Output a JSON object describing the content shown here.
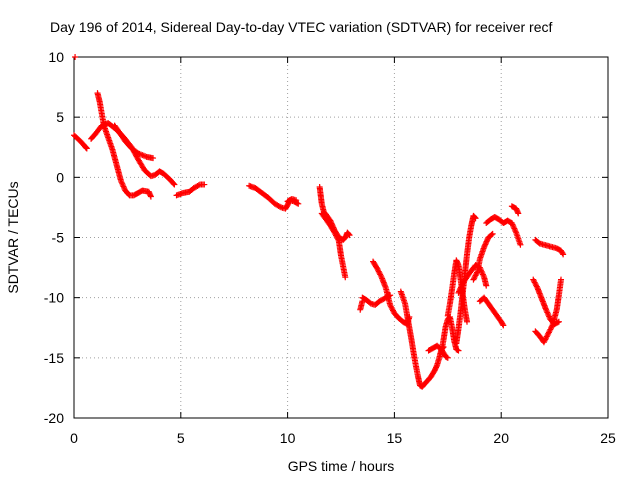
{
  "chart_data": {
    "type": "scatter",
    "title": "Day 196 of 2014, Sidereal Day-to-day VTEC variation (SDTVAR) for receiver recf",
    "xlabel": "GPS time / hours",
    "ylabel": "SDTVAR / TECUs",
    "xlim": [
      0,
      25
    ],
    "ylim": [
      -20,
      10
    ],
    "xticks": [
      0,
      5,
      10,
      15,
      20,
      25
    ],
    "yticks": [
      -20,
      -15,
      -10,
      -5,
      0,
      5,
      10
    ],
    "xtick_labels": [
      "0",
      "5",
      "10",
      "15",
      "20",
      "25"
    ],
    "ytick_labels": [
      "-20",
      "-15",
      "-10",
      "-5",
      "0",
      "5",
      "10"
    ],
    "grid": true,
    "marker": "plus",
    "series": [
      {
        "name": "SDTVAR",
        "color": "#ff0000",
        "tracks": [
          [
            [
              0.05,
              10.0
            ]
          ],
          [
            [
              0.0,
              3.5
            ],
            [
              0.3,
              3.0
            ],
            [
              0.6,
              2.4
            ],
            [
              0.55,
              2.5
            ]
          ],
          [
            [
              0.8,
              3.2
            ],
            [
              1.0,
              3.6
            ],
            [
              1.3,
              4.3
            ],
            [
              1.6,
              4.5
            ],
            [
              1.9,
              4.1
            ],
            [
              2.3,
              3.4
            ],
            [
              2.7,
              2.5
            ],
            [
              3.0,
              1.5
            ],
            [
              3.3,
              0.6
            ],
            [
              3.6,
              0.1
            ],
            [
              3.8,
              0.2
            ],
            [
              4.0,
              0.5
            ],
            [
              4.2,
              0.3
            ],
            [
              4.5,
              -0.2
            ],
            [
              4.7,
              -0.6
            ]
          ],
          [
            [
              1.1,
              7.0
            ],
            [
              1.2,
              6.3
            ],
            [
              1.3,
              5.3
            ],
            [
              1.4,
              4.3
            ],
            [
              1.6,
              3.3
            ],
            [
              1.8,
              2.3
            ],
            [
              2.0,
              1.0
            ],
            [
              2.2,
              -0.3
            ],
            [
              2.4,
              -1.1
            ],
            [
              2.6,
              -1.5
            ],
            [
              2.8,
              -1.5
            ],
            [
              3.0,
              -1.3
            ],
            [
              3.2,
              -1.1
            ],
            [
              3.5,
              -1.2
            ],
            [
              3.6,
              -1.6
            ]
          ],
          [
            [
              1.9,
              4.3
            ],
            [
              2.1,
              3.8
            ],
            [
              2.4,
              3.0
            ],
            [
              2.7,
              2.4
            ],
            [
              3.0,
              2.0
            ],
            [
              3.4,
              1.7
            ],
            [
              3.7,
              1.6
            ]
          ],
          [
            [
              4.8,
              -1.5
            ],
            [
              5.1,
              -1.3
            ],
            [
              5.4,
              -1.2
            ],
            [
              5.6,
              -0.9
            ],
            [
              5.9,
              -0.6
            ],
            [
              6.1,
              -0.6
            ]
          ],
          [
            [
              8.2,
              -0.7
            ],
            [
              8.5,
              -0.9
            ],
            [
              8.8,
              -1.3
            ],
            [
              9.1,
              -1.7
            ],
            [
              9.4,
              -2.2
            ],
            [
              9.7,
              -2.5
            ],
            [
              9.9,
              -2.6
            ],
            [
              10.0,
              -2.3
            ],
            [
              10.1,
              -1.9
            ],
            [
              10.3,
              -2.0
            ],
            [
              10.5,
              -2.2
            ]
          ],
          [
            [
              10.0,
              -2.0
            ],
            [
              10.2,
              -1.8
            ],
            [
              10.4,
              -1.9
            ]
          ],
          [
            [
              11.5,
              -0.8
            ],
            [
              11.55,
              -1.5
            ],
            [
              11.6,
              -2.2
            ],
            [
              11.7,
              -2.9
            ],
            [
              11.8,
              -3.1
            ],
            [
              12.0,
              -3.6
            ],
            [
              12.2,
              -4.4
            ],
            [
              12.4,
              -5.0
            ],
            [
              12.6,
              -5.2
            ],
            [
              12.7,
              -5.0
            ],
            [
              12.8,
              -4.6
            ],
            [
              12.9,
              -4.8
            ]
          ],
          [
            [
              11.6,
              -3.0
            ],
            [
              11.8,
              -3.5
            ],
            [
              12.0,
              -4.0
            ],
            [
              12.2,
              -4.6
            ],
            [
              12.4,
              -5.3
            ],
            [
              12.5,
              -6.5
            ],
            [
              12.6,
              -7.4
            ],
            [
              12.7,
              -8.3
            ]
          ],
          [
            [
              13.5,
              -10.0
            ],
            [
              13.7,
              -10.2
            ],
            [
              13.9,
              -10.5
            ],
            [
              14.1,
              -10.6
            ],
            [
              14.3,
              -10.3
            ],
            [
              14.6,
              -10.0
            ],
            [
              14.8,
              -9.8
            ]
          ],
          [
            [
              13.4,
              -11.0
            ],
            [
              13.5,
              -10.3
            ]
          ],
          [
            [
              14.0,
              -7.0
            ],
            [
              14.2,
              -7.6
            ],
            [
              14.4,
              -8.3
            ],
            [
              14.6,
              -9.2
            ],
            [
              14.8,
              -10.6
            ],
            [
              15.0,
              -11.3
            ],
            [
              15.2,
              -11.7
            ],
            [
              15.4,
              -12.0
            ],
            [
              15.6,
              -12.2
            ],
            [
              15.7,
              -11.6
            ]
          ],
          [
            [
              15.3,
              -9.5
            ],
            [
              15.5,
              -10.5
            ],
            [
              15.6,
              -11.5
            ],
            [
              15.7,
              -12.5
            ],
            [
              15.8,
              -13.5
            ],
            [
              15.9,
              -14.6
            ],
            [
              16.0,
              -15.6
            ],
            [
              16.1,
              -16.5
            ],
            [
              16.2,
              -17.3
            ],
            [
              16.3,
              -17.4
            ],
            [
              16.5,
              -17.0
            ],
            [
              16.7,
              -16.6
            ],
            [
              16.9,
              -16.0
            ],
            [
              17.0,
              -15.6
            ],
            [
              17.1,
              -15.0
            ],
            [
              17.2,
              -14.3
            ],
            [
              17.3,
              -14.1
            ]
          ],
          [
            [
              16.6,
              -14.4
            ],
            [
              16.8,
              -14.2
            ],
            [
              17.0,
              -14.0
            ],
            [
              17.2,
              -14.3
            ],
            [
              17.4,
              -14.9
            ],
            [
              17.5,
              -15.0
            ]
          ],
          [
            [
              17.2,
              -14.5
            ],
            [
              17.3,
              -13.5
            ],
            [
              17.4,
              -12.4
            ],
            [
              17.5,
              -11.8
            ],
            [
              17.6,
              -11.6
            ],
            [
              17.7,
              -12.5
            ],
            [
              17.8,
              -13.6
            ],
            [
              17.9,
              -14.3
            ],
            [
              18.0,
              -14.4
            ]
          ],
          [
            [
              17.5,
              -11.5
            ],
            [
              17.6,
              -10.5
            ],
            [
              17.7,
              -9.3
            ],
            [
              17.8,
              -8.0
            ],
            [
              17.9,
              -6.9
            ],
            [
              18.0,
              -7.3
            ],
            [
              18.1,
              -8.5
            ],
            [
              18.2,
              -9.8
            ],
            [
              18.3,
              -11.0
            ],
            [
              18.4,
              -12.0
            ]
          ],
          [
            [
              17.9,
              -13.8
            ],
            [
              18.0,
              -12.6
            ],
            [
              18.1,
              -11.2
            ],
            [
              18.2,
              -9.6
            ],
            [
              18.3,
              -8.0
            ],
            [
              18.4,
              -6.4
            ],
            [
              18.5,
              -5.0
            ],
            [
              18.6,
              -4.0
            ],
            [
              18.7,
              -3.2
            ],
            [
              18.8,
              -3.4
            ]
          ],
          [
            [
              18.0,
              -9.6
            ],
            [
              18.2,
              -8.8
            ],
            [
              18.5,
              -8.0
            ],
            [
              18.8,
              -7.3
            ],
            [
              19.0,
              -7.5
            ],
            [
              19.2,
              -8.3
            ],
            [
              19.3,
              -9.0
            ]
          ],
          [
            [
              18.7,
              -8.5
            ],
            [
              18.9,
              -7.8
            ],
            [
              19.0,
              -6.8
            ],
            [
              19.2,
              -5.8
            ],
            [
              19.4,
              -5.0
            ],
            [
              19.6,
              -4.7
            ]
          ],
          [
            [
              19.0,
              -10.3
            ],
            [
              19.2,
              -10.0
            ],
            [
              19.4,
              -10.5
            ],
            [
              19.6,
              -11.0
            ],
            [
              19.8,
              -11.5
            ],
            [
              20.0,
              -12.0
            ],
            [
              20.1,
              -12.3
            ]
          ],
          [
            [
              19.3,
              -3.8
            ],
            [
              19.5,
              -3.5
            ],
            [
              19.7,
              -3.3
            ],
            [
              19.9,
              -3.5
            ],
            [
              20.1,
              -3.8
            ],
            [
              20.3,
              -3.6
            ],
            [
              20.5,
              -3.8
            ],
            [
              20.7,
              -4.6
            ],
            [
              20.9,
              -5.6
            ]
          ],
          [
            [
              20.5,
              -2.4
            ],
            [
              20.7,
              -2.6
            ],
            [
              20.8,
              -3.0
            ]
          ],
          [
            [
              21.5,
              -8.5
            ],
            [
              21.7,
              -9.2
            ],
            [
              21.9,
              -10.1
            ],
            [
              22.1,
              -11.0
            ],
            [
              22.3,
              -11.8
            ],
            [
              22.5,
              -12.2
            ],
            [
              22.7,
              -12.0
            ]
          ],
          [
            [
              21.6,
              -12.8
            ],
            [
              21.8,
              -13.2
            ],
            [
              22.0,
              -13.7
            ],
            [
              22.2,
              -13.0
            ],
            [
              22.4,
              -12.3
            ],
            [
              22.6,
              -11.0
            ],
            [
              22.7,
              -9.8
            ],
            [
              22.8,
              -8.5
            ]
          ],
          [
            [
              21.6,
              -5.2
            ],
            [
              21.8,
              -5.5
            ],
            [
              22.0,
              -5.6
            ],
            [
              22.2,
              -5.7
            ],
            [
              22.4,
              -5.8
            ],
            [
              22.6,
              -5.9
            ],
            [
              22.8,
              -6.1
            ],
            [
              22.9,
              -6.4
            ]
          ]
        ]
      }
    ]
  }
}
